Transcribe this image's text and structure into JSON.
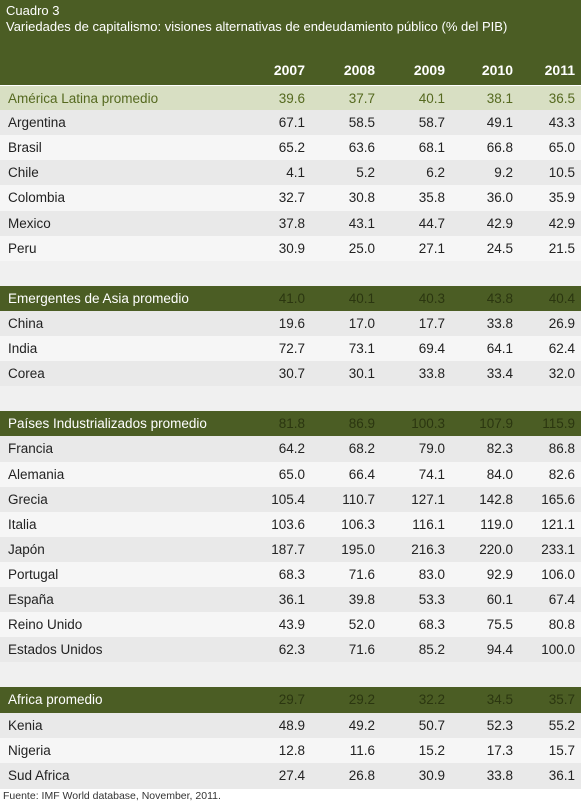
{
  "header": {
    "label": "Cuadro 3",
    "title": "Variedades de capitalismo: visiones alternativas de endeudamiento público  (% del PIB)"
  },
  "table": {
    "columns": [
      "2007",
      "2008",
      "2009",
      "2010",
      "2011"
    ],
    "groups": [
      {
        "name": "América Latina promedio",
        "values": [
          "39.6",
          "37.7",
          "40.1",
          "38.1",
          "36.5"
        ],
        "rows": [
          {
            "name": "Argentina",
            "values": [
              "67.1",
              "58.5",
              "58.7",
              "49.1",
              "43.3"
            ]
          },
          {
            "name": "Brasil",
            "values": [
              "65.2",
              "63.6",
              "68.1",
              "66.8",
              "65.0"
            ]
          },
          {
            "name": "Chile",
            "values": [
              "4.1",
              "5.2",
              "6.2",
              "9.2",
              "10.5"
            ]
          },
          {
            "name": "Colombia",
            "values": [
              "32.7",
              "30.8",
              "35.8",
              "36.0",
              "35.9"
            ]
          },
          {
            "name": "Mexico",
            "values": [
              "37.8",
              "43.1",
              "44.7",
              "42.9",
              "42.9"
            ]
          },
          {
            "name": "Peru",
            "values": [
              "30.9",
              "25.0",
              "27.1",
              "24.5",
              "21.5"
            ]
          }
        ]
      },
      {
        "name": "Emergentes de Asia promedio",
        "values": [
          "41.0",
          "40.1",
          "40.3",
          "43.8",
          "40.4"
        ],
        "rows": [
          {
            "name": "China",
            "values": [
              "19.6",
              "17.0",
              "17.7",
              "33.8",
              "26.9"
            ]
          },
          {
            "name": "India",
            "values": [
              "72.7",
              "73.1",
              "69.4",
              "64.1",
              "62.4"
            ]
          },
          {
            "name": "Corea",
            "values": [
              "30.7",
              "30.1",
              "33.8",
              "33.4",
              "32.0"
            ]
          }
        ]
      },
      {
        "name": "Países Industrializados promedio",
        "values": [
          "81.8",
          "86.9",
          "100.3",
          "107.9",
          "115.9"
        ],
        "rows": [
          {
            "name": "Francia",
            "values": [
              "64.2",
              "68.2",
              "79.0",
              "82.3",
              "86.8"
            ]
          },
          {
            "name": "Alemania",
            "values": [
              "65.0",
              "66.4",
              "74.1",
              "84.0",
              "82.6"
            ]
          },
          {
            "name": "Grecia",
            "values": [
              "105.4",
              "110.7",
              "127.1",
              "142.8",
              "165.6"
            ]
          },
          {
            "name": "Italia",
            "values": [
              "103.6",
              "106.3",
              "116.1",
              "119.0",
              "121.1"
            ]
          },
          {
            "name": "Japón",
            "values": [
              "187.7",
              "195.0",
              "216.3",
              "220.0",
              "233.1"
            ]
          },
          {
            "name": "Portugal",
            "values": [
              "68.3",
              "71.6",
              "83.0",
              "92.9",
              "106.0"
            ]
          },
          {
            "name": "España",
            "values": [
              "36.1",
              "39.8",
              "53.3",
              "60.1",
              "67.4"
            ]
          },
          {
            "name": "Reino Unido",
            "values": [
              "43.9",
              "52.0",
              "68.3",
              "75.5",
              "80.8"
            ]
          },
          {
            "name": "Estados Unidos",
            "values": [
              "62.3",
              "71.6",
              "85.2",
              "94.4",
              "100.0"
            ]
          }
        ]
      },
      {
        "name": "Africa promedio",
        "values": [
          "29.7",
          "29.2",
          "32.2",
          "34.5",
          "35.7"
        ],
        "rows": [
          {
            "name": "Kenia",
            "values": [
              "48.9",
              "49.2",
              "50.7",
              "52.3",
              "55.2"
            ]
          },
          {
            "name": "Nigeria",
            "values": [
              "12.8",
              "11.6",
              "15.2",
              "17.3",
              "15.7"
            ]
          },
          {
            "name": "Sud Africa",
            "values": [
              "27.4",
              "26.8",
              "30.9",
              "33.8",
              "36.1"
            ]
          }
        ]
      }
    ]
  },
  "footer": {
    "source": "Fuente: IMF World database, November, 2011."
  }
}
